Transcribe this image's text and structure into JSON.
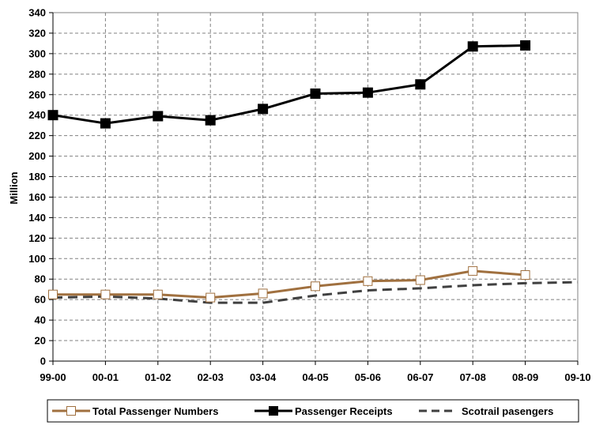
{
  "chart_data": {
    "type": "line",
    "title": "",
    "xlabel": "",
    "ylabel": "Million",
    "ylim": [
      0,
      340
    ],
    "ytick_step": 20,
    "grid": true,
    "legend_position": "bottom",
    "categories": [
      "99-00",
      "00-01",
      "01-02",
      "02-03",
      "03-04",
      "04-05",
      "05-06",
      "06-07",
      "07-08",
      "08-09",
      "09-10"
    ],
    "series": [
      {
        "name": "Total Passenger Numbers",
        "color": "#a0703f",
        "marker": "hollow-square",
        "style": "solid",
        "values": [
          65,
          65,
          65,
          62,
          66,
          73,
          78,
          79,
          88,
          84,
          null
        ]
      },
      {
        "name": "Passenger Receipts",
        "color": "#000000",
        "marker": "filled-square",
        "style": "solid",
        "values": [
          240,
          232,
          239,
          235,
          246,
          261,
          262,
          270,
          307,
          308,
          null
        ]
      },
      {
        "name": "Scotrail pasengers",
        "color": "#404040",
        "marker": "none",
        "style": "dashed",
        "values": [
          62,
          63,
          61,
          57,
          57,
          64,
          69,
          71,
          74,
          76,
          77
        ]
      }
    ]
  }
}
